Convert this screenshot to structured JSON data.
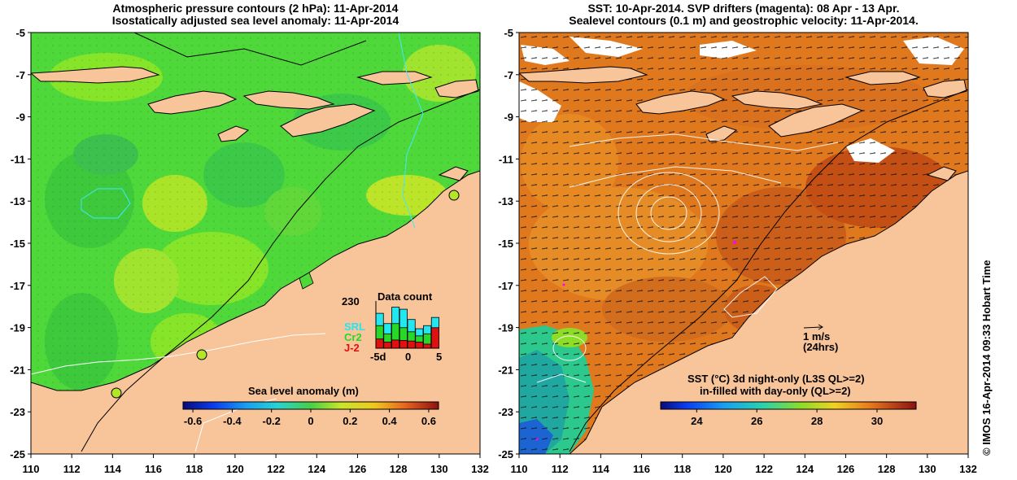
{
  "colors": {
    "land": "#f8c49a",
    "sla_base": "#4fd83a",
    "sst_base": "#e0781e",
    "contour_white": "#ffffff",
    "coast": "#000000",
    "contour_cyan": "#40e8ff",
    "magenta": "#ff00ff"
  },
  "left_panel": {
    "title_line1": "Atmospheric pressure contours (2 hPa): 11-Apr-2014",
    "title_line2": "Isostatically adjusted sea level anomaly: 11-Apr-2014",
    "colorbar_title": "Sea level anomaly (m)",
    "colorbar_ticks": [
      "-0.6",
      "-0.4",
      "-0.2",
      "0",
      "0.2",
      "0.4",
      "0.6"
    ],
    "data_count": {
      "title": "Data count",
      "ymax_label": "230",
      "series": [
        {
          "name": "SRL",
          "color": "#22e6f0",
          "values": [
            170,
            120,
            200,
            190,
            140,
            95,
            110,
            150
          ]
        },
        {
          "name": "Cr2",
          "color": "#28d828",
          "values": [
            110,
            70,
            120,
            100,
            80,
            60,
            70,
            90
          ]
        },
        {
          "name": "J-2",
          "color": "#e01010",
          "values": [
            45,
            30,
            40,
            38,
            35,
            30,
            20,
            100
          ]
        }
      ],
      "x_labels": [
        "-5d",
        "0",
        "5"
      ]
    }
  },
  "right_panel": {
    "title_line1": "SST: 10-Apr-2014. SVP drifters (magenta): 08 Apr - 13 Apr.",
    "title_line2": "Sealevel contours (0.1 m) and geostrophic velocity: 11-Apr-2014.",
    "velocity_label": "1 m/s",
    "velocity_sublabel": "(24hrs)",
    "colorbar_title_line1": "SST (°C)  3d night-only (L3S QL>=2)",
    "colorbar_title_line2": "in-filled with day-only (QL>=2)",
    "colorbar_ticks": [
      "24",
      "26",
      "28",
      "30"
    ]
  },
  "axes": {
    "x_ticks": [
      "110",
      "112",
      "114",
      "116",
      "118",
      "120",
      "122",
      "124",
      "126",
      "128",
      "130",
      "132"
    ],
    "y_ticks": [
      "-5",
      "-7",
      "-9",
      "-11",
      "-13",
      "-15",
      "-17",
      "-19",
      "-21",
      "-23",
      "-25"
    ]
  },
  "copyright": "© IMOS 16-Apr-2014 09:33 Hobart Time"
}
